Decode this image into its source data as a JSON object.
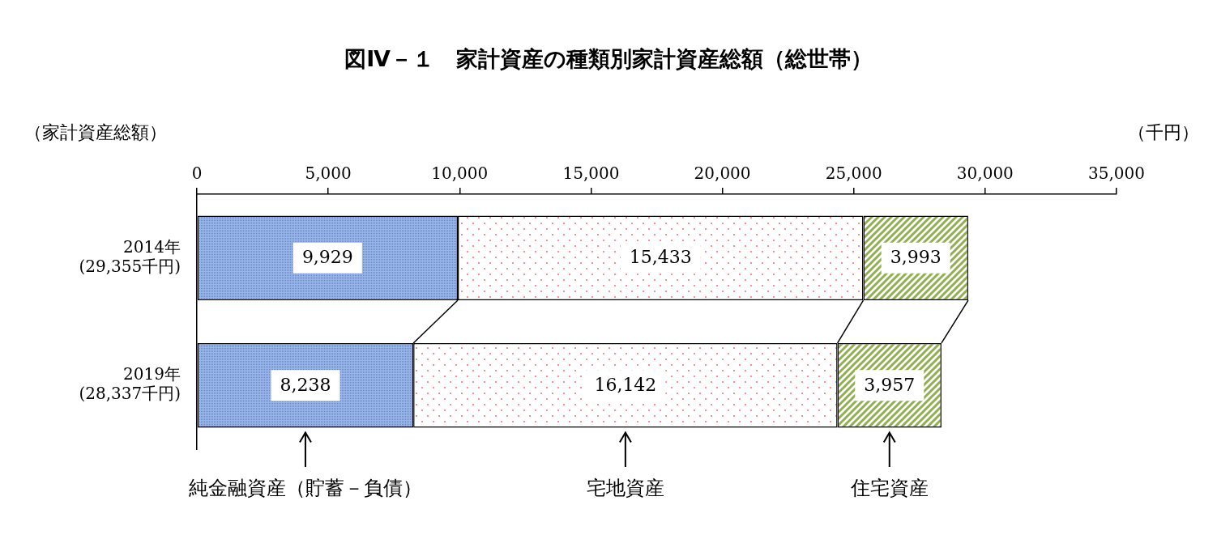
{
  "chart_data": {
    "type": "bar",
    "orientation": "horizontal",
    "stacked": true,
    "title": "図Ⅳ－１　家計資産の種類別家計資産総額（総世帯）",
    "xlabel": "（家計資産総額）",
    "unit_label": "（千円）",
    "categories": [
      "2014年",
      "2019年"
    ],
    "category_sublabels": [
      "(29,355千円)",
      "(28,337千円)"
    ],
    "series": [
      {
        "name": "純金融資産（貯蓄－負債）",
        "color": "#9fb6d9",
        "values": [
          9929,
          8238
        ],
        "value_labels": [
          "9,929",
          "8,238"
        ]
      },
      {
        "name": "宅地資産",
        "color": "#ff5a5a",
        "values": [
          15433,
          16142
        ],
        "value_labels": [
          "15,433",
          "16,142"
        ]
      },
      {
        "name": "住宅資産",
        "color": "#8fb04c",
        "values": [
          3993,
          3957
        ],
        "value_labels": [
          "3,993",
          "3,957"
        ]
      }
    ],
    "xlim": [
      0,
      35000
    ],
    "xticks": [
      0,
      {
        "value": 5000,
        "label": "5,000"
      },
      {
        "value": 10000,
        "label": "10,000"
      },
      {
        "value": 15000,
        "label": "15,000"
      },
      {
        "value": 20000,
        "label": "20,000"
      },
      {
        "value": 25000,
        "label": "25,000"
      },
      {
        "value": 30000,
        "label": "30,000"
      },
      {
        "value": 35000,
        "label": "35,000"
      }
    ],
    "grid": false,
    "data_labels": true,
    "legend": "bottom"
  }
}
